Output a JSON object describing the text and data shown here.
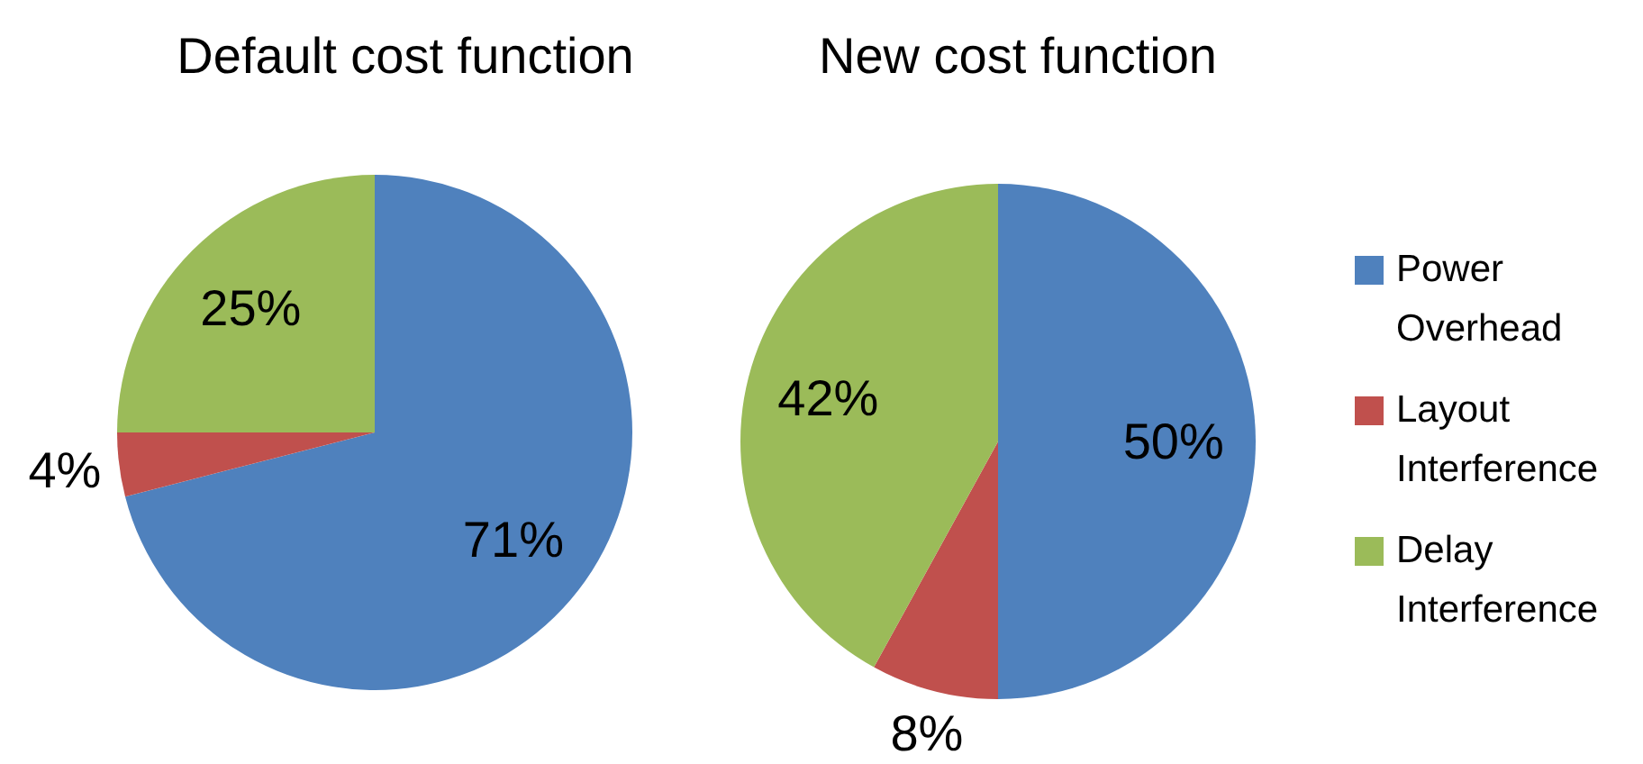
{
  "chart_data": [
    {
      "type": "pie",
      "title": "Default cost function",
      "categories": [
        null,
        null,
        null
      ],
      "values": [
        71,
        4,
        25
      ],
      "colors": [
        "#4f81bd",
        "#c0504d",
        "#9bbb59"
      ],
      "value_labels": [
        "71%",
        "4%",
        "25%"
      ],
      "legend": false
    },
    {
      "type": "pie",
      "title": "New cost function",
      "categories": [
        "Power Overhead",
        "Layout Interference",
        "Delay Interference"
      ],
      "values": [
        50,
        8,
        42
      ],
      "colors": [
        "#4f81bd",
        "#c0504d",
        "#9bbb59"
      ],
      "value_labels": [
        "50%",
        "8%",
        "42%"
      ],
      "legend": "right"
    }
  ]
}
